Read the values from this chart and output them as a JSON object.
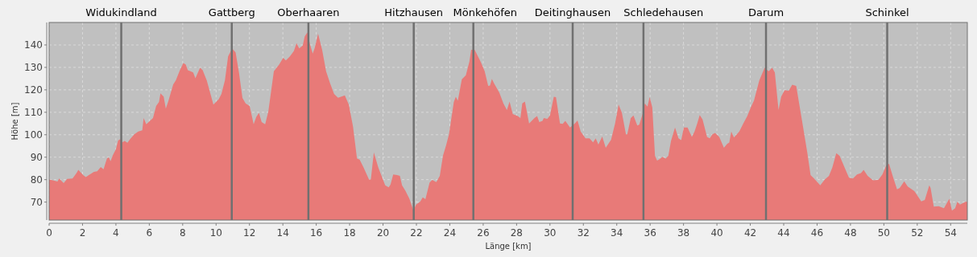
{
  "chart_data": {
    "type": "area",
    "xlabel": "Länge [km]",
    "ylabel": "Höhe [m]",
    "xlim": [
      0,
      55
    ],
    "ylim": [
      62,
      150
    ],
    "xticks": [
      0,
      2,
      4,
      6,
      8,
      10,
      12,
      14,
      16,
      18,
      20,
      22,
      24,
      26,
      28,
      30,
      32,
      34,
      36,
      38,
      40,
      42,
      44,
      46,
      48,
      50,
      52,
      54
    ],
    "yticks": [
      70,
      80,
      90,
      100,
      110,
      120,
      130,
      140
    ],
    "grid": true,
    "line_style": "dashed",
    "series": [
      {
        "color": "#e87a78",
        "x": [
          0,
          0.27,
          0.5,
          0.6,
          0.87,
          1.08,
          1.4,
          1.64,
          1.75,
          2.04,
          2.2,
          2.36,
          2.68,
          2.88,
          3.09,
          3.26,
          3.46,
          3.57,
          3.68,
          3.81,
          4.0,
          4.13,
          4.26,
          4.37,
          4.53,
          4.69,
          4.85,
          5.1,
          5.34,
          5.58,
          5.66,
          5.82,
          6.22,
          6.41,
          6.58,
          6.67,
          6.86,
          6.99,
          7.15,
          7.43,
          7.59,
          7.83,
          8.04,
          8.18,
          8.31,
          8.47,
          8.63,
          8.76,
          9.04,
          9.2,
          9.44,
          9.84,
          10.16,
          10.32,
          10.53,
          10.72,
          10.96,
          11.17,
          11.37,
          11.58,
          11.77,
          12.01,
          12.17,
          12.25,
          12.41,
          12.57,
          12.73,
          12.94,
          13.13,
          13.46,
          13.78,
          14.02,
          14.18,
          14.42,
          14.66,
          14.82,
          14.98,
          15.19,
          15.31,
          15.47,
          15.63,
          15.79,
          15.9,
          16.11,
          16.35,
          16.59,
          16.83,
          17.07,
          17.31,
          17.71,
          17.95,
          18.2,
          18.44,
          18.6,
          18.84,
          19.16,
          19.27,
          19.45,
          19.72,
          20.13,
          20.34,
          20.45,
          20.61,
          20.85,
          21.01,
          21.14,
          21.34,
          21.58,
          21.82,
          21.98,
          22.22,
          22.38,
          22.54,
          22.79,
          22.95,
          23.19,
          23.4,
          23.59,
          23.78,
          23.95,
          24.24,
          24.36,
          24.48,
          24.72,
          24.96,
          25.17,
          25.28,
          25.49,
          25.85,
          26.09,
          26.3,
          26.41,
          26.52,
          26.65,
          26.97,
          27.21,
          27.42,
          27.58,
          27.77,
          28.07,
          28.23,
          28.34,
          28.5,
          28.75,
          29.07,
          29.23,
          29.36,
          29.55,
          29.63,
          29.84,
          30.0,
          30.23,
          30.36,
          30.6,
          30.76,
          30.92,
          31.2,
          31.49,
          31.65,
          31.84,
          32.13,
          32.37,
          32.58,
          32.74,
          32.9,
          33.13,
          33.34,
          33.66,
          33.9,
          34.11,
          34.31,
          34.55,
          34.63,
          34.84,
          35.0,
          35.23,
          35.35,
          35.55,
          35.68,
          35.84,
          35.97,
          36.13,
          36.29,
          36.42,
          36.61,
          36.74,
          36.93,
          37.09,
          37.25,
          37.49,
          37.7,
          37.86,
          38.02,
          38.24,
          38.5,
          38.66,
          38.82,
          38.97,
          39.14,
          39.41,
          39.57,
          39.73,
          39.89,
          40.14,
          40.42,
          40.62,
          40.74,
          40.86,
          41.02,
          41.34,
          41.58,
          41.82,
          42.03,
          42.22,
          42.54,
          42.86,
          43.1,
          43.31,
          43.47,
          43.69,
          43.85,
          44.06,
          44.3,
          44.51,
          44.75,
          45.1,
          45.42,
          45.61,
          45.82,
          46.19,
          46.46,
          46.71,
          46.91,
          47.15,
          47.35,
          47.59,
          47.91,
          48.15,
          48.39,
          48.63,
          48.79,
          49.03,
          49.35,
          49.67,
          49.91,
          50.15,
          50.31,
          50.55,
          50.79,
          50.95,
          51.22,
          51.43,
          51.83,
          52.24,
          52.45,
          52.72,
          52.8,
          52.99,
          53.28,
          53.6,
          53.92,
          54.08,
          54.27,
          54.4,
          54.56,
          54.88,
          55
        ],
        "values": [
          80.1,
          79.6,
          79.2,
          80.5,
          78.5,
          80.3,
          80.5,
          82.9,
          84.4,
          82,
          81.1,
          81.9,
          83.5,
          83.7,
          85.6,
          84.6,
          89.4,
          90,
          88.2,
          90.8,
          93.6,
          97.4,
          98,
          96.6,
          97.2,
          96.4,
          98,
          100.2,
          101.4,
          102,
          107.4,
          104.7,
          107.4,
          112.8,
          114.6,
          118.4,
          117,
          111.6,
          115.2,
          122.4,
          124.2,
          128.7,
          131.9,
          131.3,
          128.7,
          128.3,
          127.7,
          125.1,
          129.9,
          128.7,
          124.2,
          113.4,
          115.8,
          118.2,
          124.2,
          134.9,
          138.5,
          136.7,
          127.7,
          116.4,
          114,
          112.8,
          107.4,
          104.7,
          108,
          109.8,
          105.6,
          104.7,
          110.4,
          128.3,
          131.3,
          134.3,
          133.1,
          134.9,
          137.3,
          140.8,
          138.5,
          139.7,
          143.8,
          145.6,
          140.2,
          136.1,
          138.5,
          145,
          137.9,
          128.3,
          122.9,
          118.2,
          116.5,
          117.5,
          113.4,
          103.8,
          89.5,
          88.9,
          85.3,
          80.1,
          80.1,
          92.1,
          85.3,
          77.5,
          76.6,
          77.8,
          82.3,
          82,
          81.7,
          77.5,
          75.1,
          71.5,
          66.2,
          68.9,
          70.1,
          72.1,
          71.3,
          78.7,
          79.9,
          78.9,
          81.7,
          90.6,
          95.4,
          100.2,
          114.6,
          116.9,
          115.1,
          124.7,
          126.5,
          132.5,
          137.8,
          137.8,
          132.5,
          128.3,
          121.7,
          121.9,
          124.9,
          122.9,
          118.7,
          114,
          111,
          114.8,
          109.2,
          108.3,
          107.4,
          114,
          114.8,
          105,
          107.4,
          108.3,
          105.6,
          106.2,
          107.4,
          107.1,
          108.6,
          116.9,
          116.7,
          105,
          104.8,
          106.2,
          103.2,
          105,
          106.4,
          101.4,
          98.4,
          98.4,
          96.6,
          98.4,
          95.6,
          99.2,
          94.2,
          97.8,
          105,
          113.4,
          109.8,
          100.2,
          100.2,
          107.4,
          108.6,
          104.1,
          104.5,
          109.3,
          114,
          112.5,
          116.8,
          112.2,
          90.6,
          88.5,
          89.4,
          90.2,
          89.4,
          90.6,
          97.2,
          103.2,
          98.4,
          97.6,
          103.2,
          103.2,
          99,
          101.4,
          105,
          108.8,
          106.8,
          99,
          98.4,
          100.2,
          100.8,
          99,
          94.2,
          96,
          96.5,
          101.4,
          98.8,
          101.4,
          105,
          108.3,
          112.2,
          115.2,
          124.2,
          129.9,
          128.3,
          129.9,
          127.7,
          111,
          117,
          119.9,
          119.6,
          122.3,
          121.7,
          106.2,
          91.8,
          82,
          80.5,
          77.5,
          80.1,
          81.7,
          85.3,
          91.8,
          90.6,
          86.4,
          80.9,
          80.5,
          82.3,
          82.9,
          84.4,
          81.7,
          79.7,
          79.9,
          82.3,
          86.4,
          87,
          81.1,
          75.7,
          76.3,
          79.3,
          76.9,
          74.9,
          70.3,
          70.9,
          77.5,
          76.3,
          68,
          68.2,
          67.3,
          71.5,
          66.2,
          67.3,
          70.1,
          68.9,
          70.1,
          70.1
        ]
      }
    ],
    "ref_lines": [
      {
        "axis": "x",
        "value": 4.32,
        "label": "Widukindland",
        "color": "#707070"
      },
      {
        "axis": "x",
        "value": 10.94,
        "label": "Gattberg",
        "color": "#707070"
      },
      {
        "axis": "x",
        "value": 15.53,
        "label": "Oberhaaren",
        "color": "#707070"
      },
      {
        "axis": "x",
        "value": 21.84,
        "label": "Hitzhausen",
        "color": "#707070"
      },
      {
        "axis": "x",
        "value": 25.41,
        "label": "Mönkehöfen",
        "color": "#707070"
      },
      {
        "axis": "x",
        "value": 31.36,
        "label": "Deitinghausen",
        "color": "#707070"
      },
      {
        "axis": "x",
        "value": 35.6,
        "label": "Schledehausen",
        "color": "#707070"
      },
      {
        "axis": "x",
        "value": 42.94,
        "label": "Darum",
        "color": "#707070"
      },
      {
        "axis": "x",
        "value": 50.2,
        "label": "Schinkel",
        "color": "#707070"
      }
    ]
  }
}
